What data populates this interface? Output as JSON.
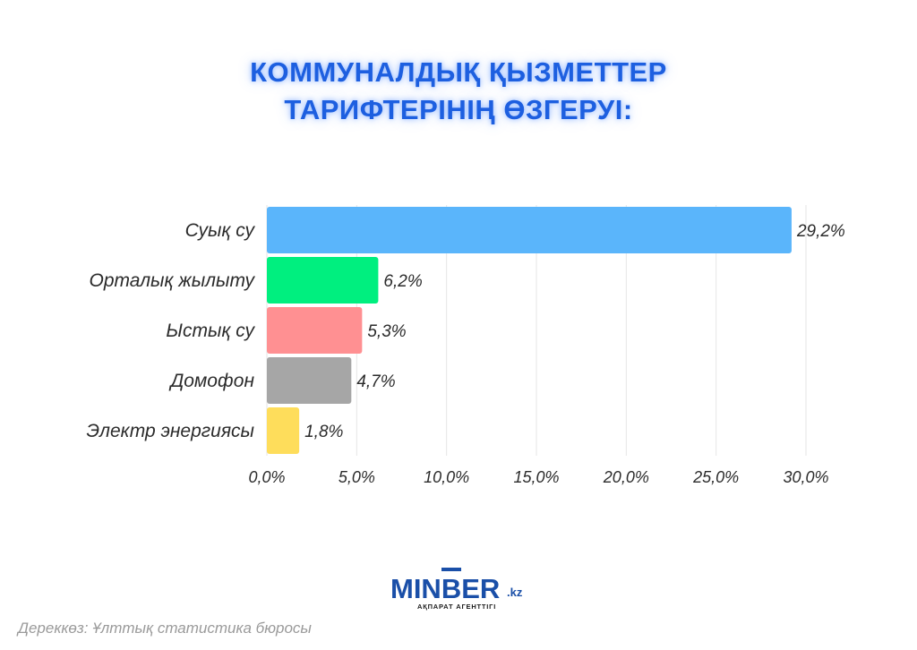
{
  "title_lines": [
    "КОММУНАЛДЫҚ ҚЫЗМЕТТЕР",
    "ТАРИФТЕРІНІҢ ӨЗГЕРУІ:"
  ],
  "chart_data": {
    "type": "bar",
    "orientation": "horizontal",
    "categories": [
      "Суық су",
      "Орталық жылыту",
      "Ыстық су",
      "Домофон",
      "Электр энергиясы"
    ],
    "values": [
      29.2,
      6.2,
      5.3,
      4.7,
      1.8
    ],
    "value_labels": [
      "29,2%",
      "6,2%",
      "5,3%",
      "4,7%",
      "1,8%"
    ],
    "colors": [
      "#5ab5fb",
      "#00ef7f",
      "#ff9092",
      "#a6a6a6",
      "#fedd5b"
    ],
    "xlim": [
      0,
      30
    ],
    "xticks": [
      0,
      5,
      10,
      15,
      20,
      25,
      30
    ],
    "xtick_labels": [
      "0,0%",
      "5,0%",
      "10,0%",
      "15,0%",
      "20,0%",
      "25,0%",
      "30,0%"
    ],
    "grid": true,
    "legend": "none"
  },
  "logo": {
    "name_left": "MIN",
    "name_right": "BER",
    "suffix": ".kz",
    "tagline": "АҚПАРАТ АГЕНТТІГІ"
  },
  "source": "Дереккөз: Ұлттық статистика бюросы"
}
